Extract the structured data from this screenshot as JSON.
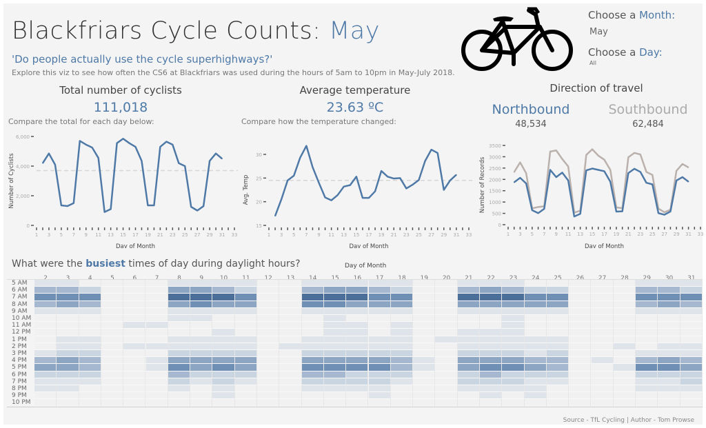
{
  "header": {
    "title_prefix": "Blackfriars Cycle Counts: ",
    "title_month": "May",
    "question": "'Do people actually use the cycle superhighways?'",
    "explore": "Explore this viz to see how often the CS6 at Blackfriars was used during the hours of 5am to 10pm in May-July 2018."
  },
  "filters": {
    "month_label_prefix": "Choose a ",
    "month_label_accent": "Month:",
    "month_value": "May",
    "day_label_prefix": "Choose a ",
    "day_label_accent": "Day:",
    "day_value": "All",
    "bike_icon": "bicycle-icon"
  },
  "kpis": {
    "cyclists_label": "Total number of cyclists",
    "cyclists_value": "111,018",
    "cyclists_sub": "Compare the total for each day below:",
    "temp_label": "Average temperature",
    "temp_value": "23.63 ºC",
    "temp_sub": "Compare how the temperature changed:",
    "direction_label": "Direction of travel",
    "north_label": "Northbound",
    "north_value": "48,534",
    "south_label": "Southbound",
    "south_value": "62,484"
  },
  "colors": {
    "accent": "#4e79a7",
    "south": "#bab0ac",
    "background": "#f4f4f4"
  },
  "chart_data": [
    {
      "type": "line",
      "title": "Total number of cyclists",
      "xlabel": "Day of Month",
      "ylabel": "Number of Cyclists",
      "xticks": [
        1,
        3,
        5,
        7,
        9,
        11,
        13,
        15,
        17,
        19,
        21,
        23,
        25,
        27,
        29,
        31,
        33
      ],
      "yticks": [
        0,
        2000,
        4000,
        6000
      ],
      "ytick_labels": [
        "0",
        "2,000",
        "4,000",
        "6,000"
      ],
      "ylim": [
        0,
        6000
      ],
      "xlim": [
        1,
        33
      ],
      "reference_line": 3700,
      "x": [
        2,
        3,
        4,
        5,
        6,
        7,
        8,
        9,
        10,
        11,
        12,
        13,
        14,
        15,
        16,
        17,
        18,
        19,
        20,
        21,
        22,
        23,
        24,
        25,
        26,
        27,
        28,
        29,
        30,
        31
      ],
      "series": [
        {
          "name": "Number of Cyclists",
          "color": "#4e79a7",
          "values": [
            4200,
            4850,
            4100,
            1350,
            1300,
            1500,
            5700,
            5450,
            5250,
            4550,
            900,
            1100,
            5550,
            5850,
            5550,
            5300,
            4350,
            1350,
            1350,
            5300,
            5650,
            5450,
            4200,
            4000,
            1250,
            1000,
            1300,
            4350,
            4850,
            4500
          ]
        }
      ]
    },
    {
      "type": "line",
      "title": "Average temperature",
      "xlabel": "Day of Month",
      "ylabel": "Avg. Temp",
      "xticks": [
        1,
        3,
        5,
        7,
        9,
        11,
        13,
        15,
        17,
        19,
        21,
        23,
        25,
        27,
        29,
        31,
        33
      ],
      "yticks": [
        15,
        20,
        25,
        30
      ],
      "ytick_labels": [
        "15",
        "20",
        "25",
        "30"
      ],
      "ylim": [
        15,
        30
      ],
      "xlim": [
        1,
        33
      ],
      "reference_line": 24.5,
      "x": [
        2,
        3,
        4,
        5,
        6,
        7,
        8,
        9,
        10,
        11,
        12,
        13,
        14,
        15,
        16,
        17,
        18,
        19,
        20,
        21,
        22,
        23,
        24,
        25,
        26,
        27,
        28,
        29,
        30,
        31
      ],
      "series": [
        {
          "name": "Avg. Temp",
          "color": "#4e79a7",
          "values": [
            17,
            20.5,
            24.5,
            25.5,
            29.3,
            31.8,
            27.3,
            24,
            20.9,
            20.3,
            21.4,
            23.2,
            23.5,
            25.3,
            20.8,
            20.8,
            22.2,
            26.5,
            25.3,
            24.9,
            25,
            22.8,
            23.6,
            24.6,
            28.6,
            31,
            30.3,
            22.5,
            24.5,
            25.7
          ]
        }
      ]
    },
    {
      "type": "line",
      "title": "Direction of travel",
      "xlabel": "Day of Month",
      "ylabel": "Number of Records",
      "xticks": [
        1,
        3,
        5,
        7,
        9,
        11,
        13,
        15,
        17,
        19,
        21,
        23,
        25,
        27,
        29,
        31,
        33
      ],
      "yticks": [
        0,
        500,
        1000,
        1500,
        2000,
        2500,
        3000,
        3500
      ],
      "ytick_labels": [
        "0",
        "500",
        "1000",
        "1500",
        "2000",
        "2500",
        "3000",
        "3500"
      ],
      "ylim": [
        0,
        3500
      ],
      "xlim": [
        1,
        33
      ],
      "x": [
        2,
        3,
        4,
        5,
        6,
        7,
        8,
        9,
        10,
        11,
        12,
        13,
        14,
        15,
        16,
        17,
        18,
        19,
        20,
        21,
        22,
        23,
        24,
        25,
        26,
        27,
        28,
        29,
        30,
        31
      ],
      "series": [
        {
          "name": "Southbound",
          "color": "#bab0ac",
          "values": [
            2320,
            2750,
            2270,
            720,
            780,
            810,
            3230,
            3280,
            2900,
            2570,
            530,
            620,
            3080,
            3330,
            3050,
            2870,
            2420,
            760,
            730,
            2980,
            3170,
            3100,
            2330,
            2200,
            710,
            550,
            660,
            2380,
            2680,
            2530
          ]
        },
        {
          "name": "Northbound",
          "color": "#4e79a7",
          "values": [
            1870,
            2070,
            1820,
            640,
            510,
            700,
            2420,
            2100,
            2300,
            1950,
            360,
            480,
            2400,
            2480,
            2420,
            2360,
            1900,
            580,
            590,
            2280,
            2470,
            2330,
            1850,
            1780,
            510,
            440,
            580,
            1950,
            2100,
            1900
          ]
        }
      ]
    },
    {
      "type": "heatmap",
      "title_prefix": "What were the ",
      "title_accent": "busiest",
      "title_suffix": " times of day during daylight hours?",
      "xlabel": "Day of Month",
      "days": [
        "2",
        "3",
        "4",
        "5",
        "6",
        "7",
        "8",
        "9",
        "10",
        "11",
        "12",
        "13",
        "14",
        "15",
        "16",
        "17",
        "18",
        "19",
        "20",
        "21",
        "22",
        "23",
        "24",
        "25",
        "26",
        "27",
        "28",
        "29",
        "30",
        "31"
      ],
      "hours": [
        "5 AM",
        "6 AM",
        "7 AM",
        "8 AM",
        "9 AM",
        "10 AM",
        "11 AM",
        "12 PM",
        "1 PM",
        "2 PM",
        "3 PM",
        "4 PM",
        "5 PM",
        "6 PM",
        "7 PM",
        "8 PM",
        "9 PM",
        "10 PM"
      ],
      "intensity_scale": [
        0,
        6
      ],
      "levels_by_day": [
        [
          1,
          3,
          5,
          3,
          1,
          0,
          0,
          0,
          0,
          0,
          1,
          3,
          4,
          2,
          1,
          1,
          0,
          0
        ],
        [
          1,
          3,
          5,
          4,
          1,
          0,
          0,
          0,
          1,
          1,
          2,
          4,
          4,
          2,
          1,
          1,
          0,
          0
        ],
        [
          0,
          2,
          5,
          3,
          1,
          0,
          0,
          0,
          1,
          1,
          2,
          3,
          3,
          2,
          1,
          0,
          0,
          0
        ],
        [
          0,
          0,
          0,
          0,
          0,
          0,
          0,
          0,
          0,
          0,
          0,
          0,
          0,
          0,
          0,
          0,
          0,
          0
        ],
        [
          0,
          0,
          0,
          0,
          0,
          0,
          1,
          0,
          0,
          1,
          0,
          0,
          0,
          0,
          0,
          0,
          0,
          0
        ],
        [
          0,
          0,
          0,
          0,
          0,
          0,
          1,
          0,
          0,
          1,
          0,
          1,
          1,
          0,
          0,
          0,
          0,
          0
        ],
        [
          1,
          4,
          6,
          4,
          1,
          1,
          0,
          0,
          1,
          1,
          2,
          4,
          5,
          3,
          2,
          1,
          0,
          0
        ],
        [
          1,
          4,
          6,
          5,
          1,
          1,
          0,
          0,
          1,
          1,
          2,
          4,
          4,
          2,
          1,
          0,
          0,
          0
        ],
        [
          1,
          3,
          6,
          4,
          1,
          0,
          0,
          1,
          1,
          1,
          2,
          4,
          5,
          2,
          2,
          1,
          1,
          0
        ],
        [
          1,
          2,
          5,
          4,
          1,
          0,
          0,
          0,
          1,
          1,
          2,
          4,
          4,
          2,
          1,
          0,
          0,
          0
        ],
        [
          0,
          0,
          0,
          0,
          0,
          0,
          0,
          0,
          0,
          0,
          0,
          0,
          0,
          0,
          0,
          0,
          0,
          0
        ],
        [
          0,
          0,
          0,
          0,
          0,
          0,
          0,
          0,
          0,
          1,
          0,
          0,
          0,
          0,
          0,
          0,
          0,
          0
        ],
        [
          1,
          3,
          6,
          5,
          1,
          0,
          0,
          0,
          1,
          1,
          2,
          4,
          5,
          3,
          2,
          1,
          0,
          0
        ],
        [
          1,
          4,
          6,
          5,
          1,
          1,
          1,
          1,
          1,
          1,
          2,
          4,
          5,
          3,
          2,
          1,
          0,
          0
        ],
        [
          1,
          4,
          6,
          4,
          1,
          0,
          1,
          1,
          1,
          1,
          2,
          4,
          5,
          2,
          2,
          1,
          0,
          0
        ],
        [
          1,
          3,
          5,
          4,
          1,
          0,
          0,
          0,
          1,
          1,
          2,
          4,
          5,
          2,
          2,
          1,
          1,
          0
        ],
        [
          1,
          2,
          5,
          4,
          1,
          0,
          1,
          1,
          1,
          1,
          2,
          3,
          3,
          2,
          1,
          0,
          0,
          0
        ],
        [
          0,
          0,
          0,
          0,
          0,
          0,
          0,
          0,
          0,
          0,
          0,
          1,
          1,
          0,
          0,
          0,
          0,
          0
        ],
        [
          0,
          0,
          0,
          0,
          0,
          0,
          0,
          0,
          1,
          0,
          0,
          0,
          0,
          0,
          0,
          0,
          0,
          0
        ],
        [
          1,
          3,
          6,
          4,
          1,
          0,
          0,
          1,
          1,
          1,
          2,
          4,
          4,
          2,
          2,
          1,
          0,
          0
        ],
        [
          1,
          4,
          6,
          4,
          1,
          0,
          0,
          1,
          1,
          1,
          2,
          4,
          5,
          3,
          2,
          1,
          1,
          0
        ],
        [
          1,
          3,
          6,
          4,
          1,
          1,
          1,
          1,
          1,
          1,
          2,
          4,
          5,
          2,
          2,
          1,
          0,
          0
        ],
        [
          0,
          2,
          5,
          4,
          1,
          0,
          0,
          0,
          1,
          1,
          1,
          3,
          4,
          2,
          1,
          1,
          1,
          0
        ],
        [
          0,
          2,
          5,
          4,
          1,
          0,
          0,
          0,
          1,
          1,
          2,
          3,
          3,
          2,
          1,
          0,
          0,
          0
        ],
        [
          0,
          0,
          0,
          0,
          0,
          0,
          0,
          0,
          0,
          0,
          0,
          0,
          0,
          0,
          0,
          0,
          0,
          0
        ],
        [
          0,
          0,
          0,
          0,
          0,
          0,
          0,
          0,
          0,
          0,
          0,
          1,
          0,
          0,
          0,
          0,
          0,
          0
        ],
        [
          0,
          0,
          0,
          0,
          0,
          0,
          0,
          0,
          0,
          1,
          0,
          0,
          1,
          0,
          0,
          0,
          0,
          0
        ],
        [
          1,
          3,
          5,
          3,
          1,
          0,
          0,
          0,
          0,
          0,
          1,
          3,
          5,
          2,
          1,
          1,
          0,
          0
        ],
        [
          1,
          3,
          5,
          4,
          1,
          0,
          0,
          0,
          0,
          1,
          1,
          4,
          5,
          2,
          1,
          1,
          0,
          0
        ],
        [
          1,
          2,
          5,
          3,
          1,
          0,
          0,
          0,
          0,
          1,
          1,
          3,
          4,
          2,
          2,
          1,
          0,
          0
        ]
      ]
    }
  ],
  "footer": {
    "source": "Source - TfL Cycling | Author - Tom Prowse"
  }
}
